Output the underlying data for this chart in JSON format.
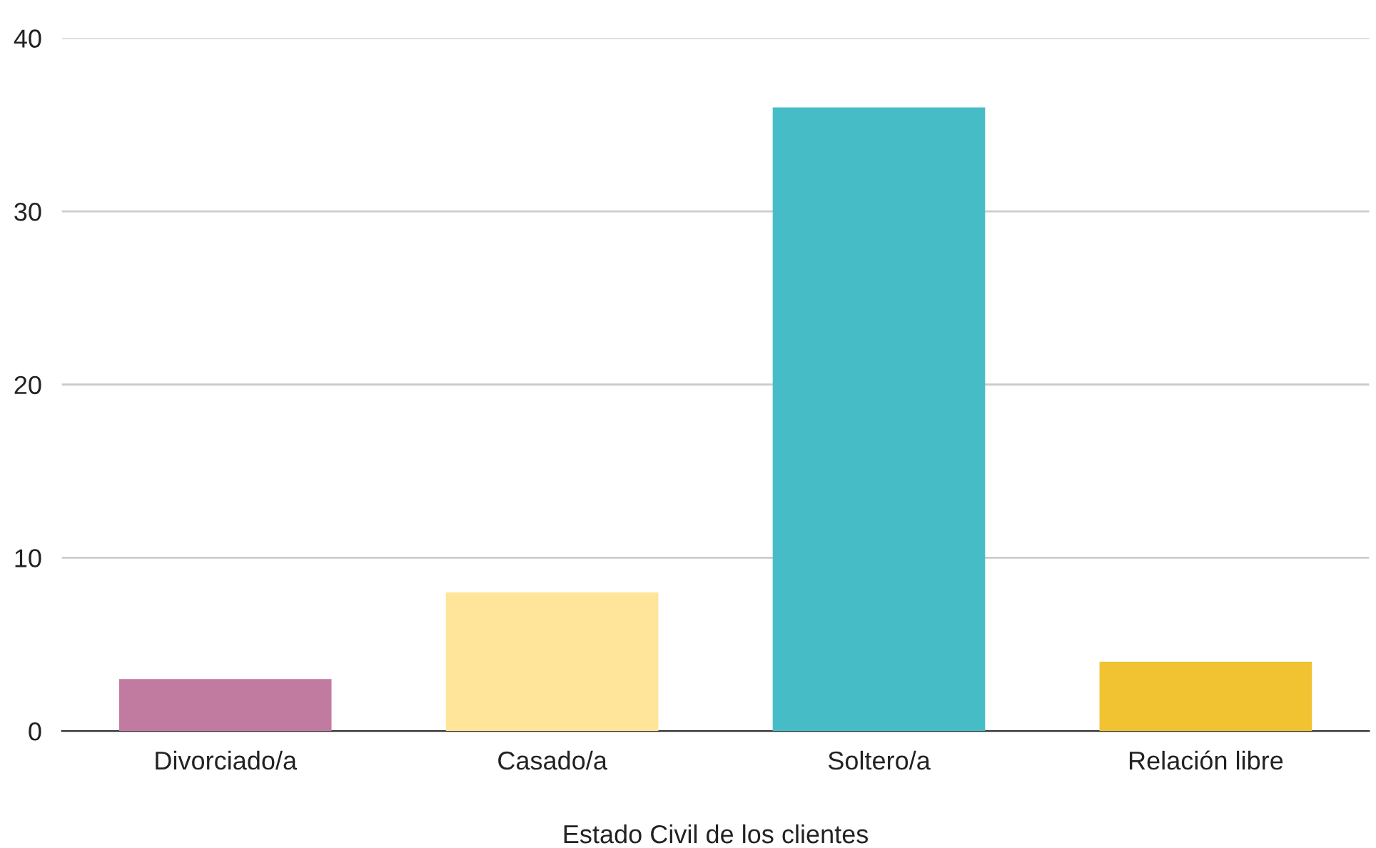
{
  "chart_data": {
    "type": "bar",
    "xlabel": "Estado Civil de los clientes",
    "categories": [
      "Divorciado/a",
      "Casado/a",
      "Soltero/a",
      "Relación libre"
    ],
    "values": [
      3,
      8,
      36,
      4
    ],
    "colors": [
      "#c27ba0",
      "#ffe599",
      "#46bdc6",
      "#f1c232"
    ],
    "ylim": [
      0,
      40
    ],
    "yticks": [
      0,
      10,
      20,
      30,
      40
    ],
    "grid": "y"
  }
}
